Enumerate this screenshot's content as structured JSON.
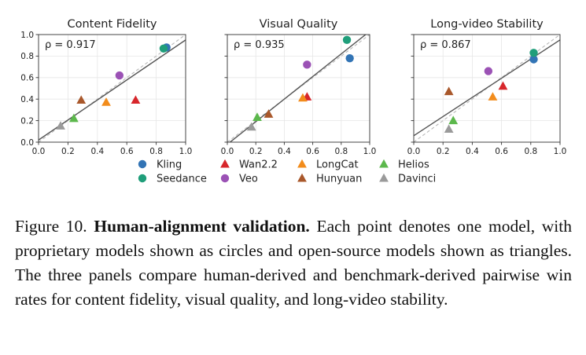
{
  "chart_data": [
    {
      "type": "scatter",
      "title": "Content Fidelity",
      "annotation": "ρ = 0.917",
      "xlim": [
        0,
        1
      ],
      "ylim": [
        0,
        1
      ],
      "xticks": [
        "0.0",
        "0.2",
        "0.4",
        "0.6",
        "0.8",
        "1.0"
      ],
      "yticks": [
        "0.0",
        "0.2",
        "0.4",
        "0.6",
        "0.8",
        "1.0"
      ],
      "grid": true,
      "fit_line": [
        [
          0.0,
          0.02
        ],
        [
          1.0,
          0.95
        ]
      ],
      "identity_line": [
        [
          0.0,
          0.0
        ],
        [
          1.0,
          1.0
        ]
      ],
      "points": [
        {
          "model": "Kling",
          "x": 0.87,
          "y": 0.88
        },
        {
          "model": "Seedance",
          "x": 0.85,
          "y": 0.87
        },
        {
          "model": "Veo",
          "x": 0.55,
          "y": 0.62
        },
        {
          "model": "Wan2.2",
          "x": 0.66,
          "y": 0.39
        },
        {
          "model": "LongCat",
          "x": 0.46,
          "y": 0.37
        },
        {
          "model": "Hunyuan",
          "x": 0.29,
          "y": 0.39
        },
        {
          "model": "Helios",
          "x": 0.24,
          "y": 0.22
        },
        {
          "model": "Davinci",
          "x": 0.15,
          "y": 0.15
        }
      ]
    },
    {
      "type": "scatter",
      "title": "Visual Quality",
      "annotation": "ρ = 0.935",
      "xlim": [
        0,
        1
      ],
      "ylim": [
        0,
        1
      ],
      "xticks": [
        "0.0",
        "0.2",
        "0.4",
        "0.6",
        "0.8",
        "1.0"
      ],
      "yticks": [],
      "grid": true,
      "fit_line": [
        [
          0.0,
          -0.02
        ],
        [
          1.0,
          1.03
        ]
      ],
      "identity_line": [
        [
          0.0,
          0.0
        ],
        [
          1.0,
          1.0
        ]
      ],
      "points": [
        {
          "model": "Kling",
          "x": 0.86,
          "y": 0.78
        },
        {
          "model": "Seedance",
          "x": 0.84,
          "y": 0.95
        },
        {
          "model": "Veo",
          "x": 0.56,
          "y": 0.72
        },
        {
          "model": "Wan2.2",
          "x": 0.56,
          "y": 0.42
        },
        {
          "model": "LongCat",
          "x": 0.53,
          "y": 0.41
        },
        {
          "model": "Hunyuan",
          "x": 0.29,
          "y": 0.26
        },
        {
          "model": "Helios",
          "x": 0.21,
          "y": 0.23
        },
        {
          "model": "Davinci",
          "x": 0.17,
          "y": 0.14
        }
      ]
    },
    {
      "type": "scatter",
      "title": "Long-video Stability",
      "annotation": "ρ = 0.867",
      "xlim": [
        0,
        1
      ],
      "ylim": [
        0,
        1
      ],
      "xticks": [
        "0.0",
        "0.2",
        "0.4",
        "0.6",
        "0.8",
        "1.0"
      ],
      "yticks": [],
      "grid": true,
      "fit_line": [
        [
          0.0,
          0.06
        ],
        [
          1.0,
          0.95
        ]
      ],
      "identity_line": [
        [
          0.0,
          0.0
        ],
        [
          1.0,
          1.0
        ]
      ],
      "points": [
        {
          "model": "Kling",
          "x": 0.82,
          "y": 0.77
        },
        {
          "model": "Seedance",
          "x": 0.82,
          "y": 0.83
        },
        {
          "model": "Veo",
          "x": 0.51,
          "y": 0.66
        },
        {
          "model": "Wan2.2",
          "x": 0.61,
          "y": 0.52
        },
        {
          "model": "LongCat",
          "x": 0.54,
          "y": 0.42
        },
        {
          "model": "Hunyuan",
          "x": 0.24,
          "y": 0.47
        },
        {
          "model": "Helios",
          "x": 0.27,
          "y": 0.2
        },
        {
          "model": "Davinci",
          "x": 0.24,
          "y": 0.12
        }
      ]
    }
  ],
  "models": [
    {
      "name": "Kling",
      "marker": "circle",
      "color": "#3274b5"
    },
    {
      "name": "Seedance",
      "marker": "circle",
      "color": "#1f9e7a"
    },
    {
      "name": "Veo",
      "marker": "circle",
      "color": "#9b52b5"
    },
    {
      "name": "Wan2.2",
      "marker": "triangle",
      "color": "#d7262b"
    },
    {
      "name": "LongCat",
      "marker": "triangle",
      "color": "#f28c1c"
    },
    {
      "name": "Hunyuan",
      "marker": "triangle",
      "color": "#a9582b"
    },
    {
      "name": "Helios",
      "marker": "triangle",
      "color": "#5cb84c"
    },
    {
      "name": "Davinci",
      "marker": "triangle",
      "color": "#9a9a9a"
    }
  ],
  "caption": {
    "label": "Figure 10.",
    "title": "Human-alignment validation.",
    "body": "Each point denotes one model, with proprietary models shown as circles and open-source models shown as triangles.  The three panels compare human-derived and benchmark-derived pairwise win rates for content fidelity, visual quality, and long-video stability."
  }
}
